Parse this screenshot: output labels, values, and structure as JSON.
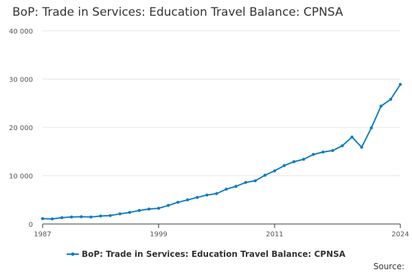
{
  "title": "BoP: Trade in Services: Education Travel Balance: CPNSA",
  "source_label": "Source:",
  "colors": {
    "series": "#0e7bbf",
    "grid": "#e6e6e6",
    "axis": "#333333"
  },
  "chart_data": {
    "type": "line",
    "title": "BoP: Trade in Services: Education Travel Balance: CPNSA",
    "xlabel": "",
    "ylabel": "",
    "xlim": [
      1987,
      2024
    ],
    "ylim": [
      0,
      40000
    ],
    "x_ticks": [
      1987,
      1999,
      2011,
      2024
    ],
    "x_tick_labels": [
      "1987",
      "1999",
      "2011",
      "2024"
    ],
    "y_ticks": [
      0,
      10000,
      20000,
      30000,
      40000
    ],
    "y_tick_labels": [
      "0",
      "10 000",
      "20 000",
      "30 000",
      "40 000"
    ],
    "grid": "horizontal",
    "legend_position": "bottom",
    "series": [
      {
        "name": "BoP: Trade in Services: Education Travel Balance: CPNSA",
        "x": [
          1987,
          1988,
          1989,
          1990,
          1991,
          1992,
          1993,
          1994,
          1995,
          1996,
          1997,
          1998,
          1999,
          2000,
          2001,
          2002,
          2003,
          2004,
          2005,
          2006,
          2007,
          2008,
          2009,
          2010,
          2011,
          2012,
          2013,
          2014,
          2015,
          2016,
          2017,
          2018,
          2019,
          2020,
          2021,
          2022,
          2023,
          2024
        ],
        "values": [
          1100,
          1050,
          1300,
          1450,
          1500,
          1450,
          1650,
          1750,
          2100,
          2400,
          2800,
          3100,
          3250,
          3850,
          4500,
          5000,
          5500,
          6000,
          6300,
          7200,
          7800,
          8600,
          8950,
          10100,
          11000,
          12100,
          12900,
          13400,
          14400,
          14900,
          15200,
          16200,
          18000,
          15900,
          19900,
          24400,
          25800,
          28900
        ]
      }
    ]
  }
}
